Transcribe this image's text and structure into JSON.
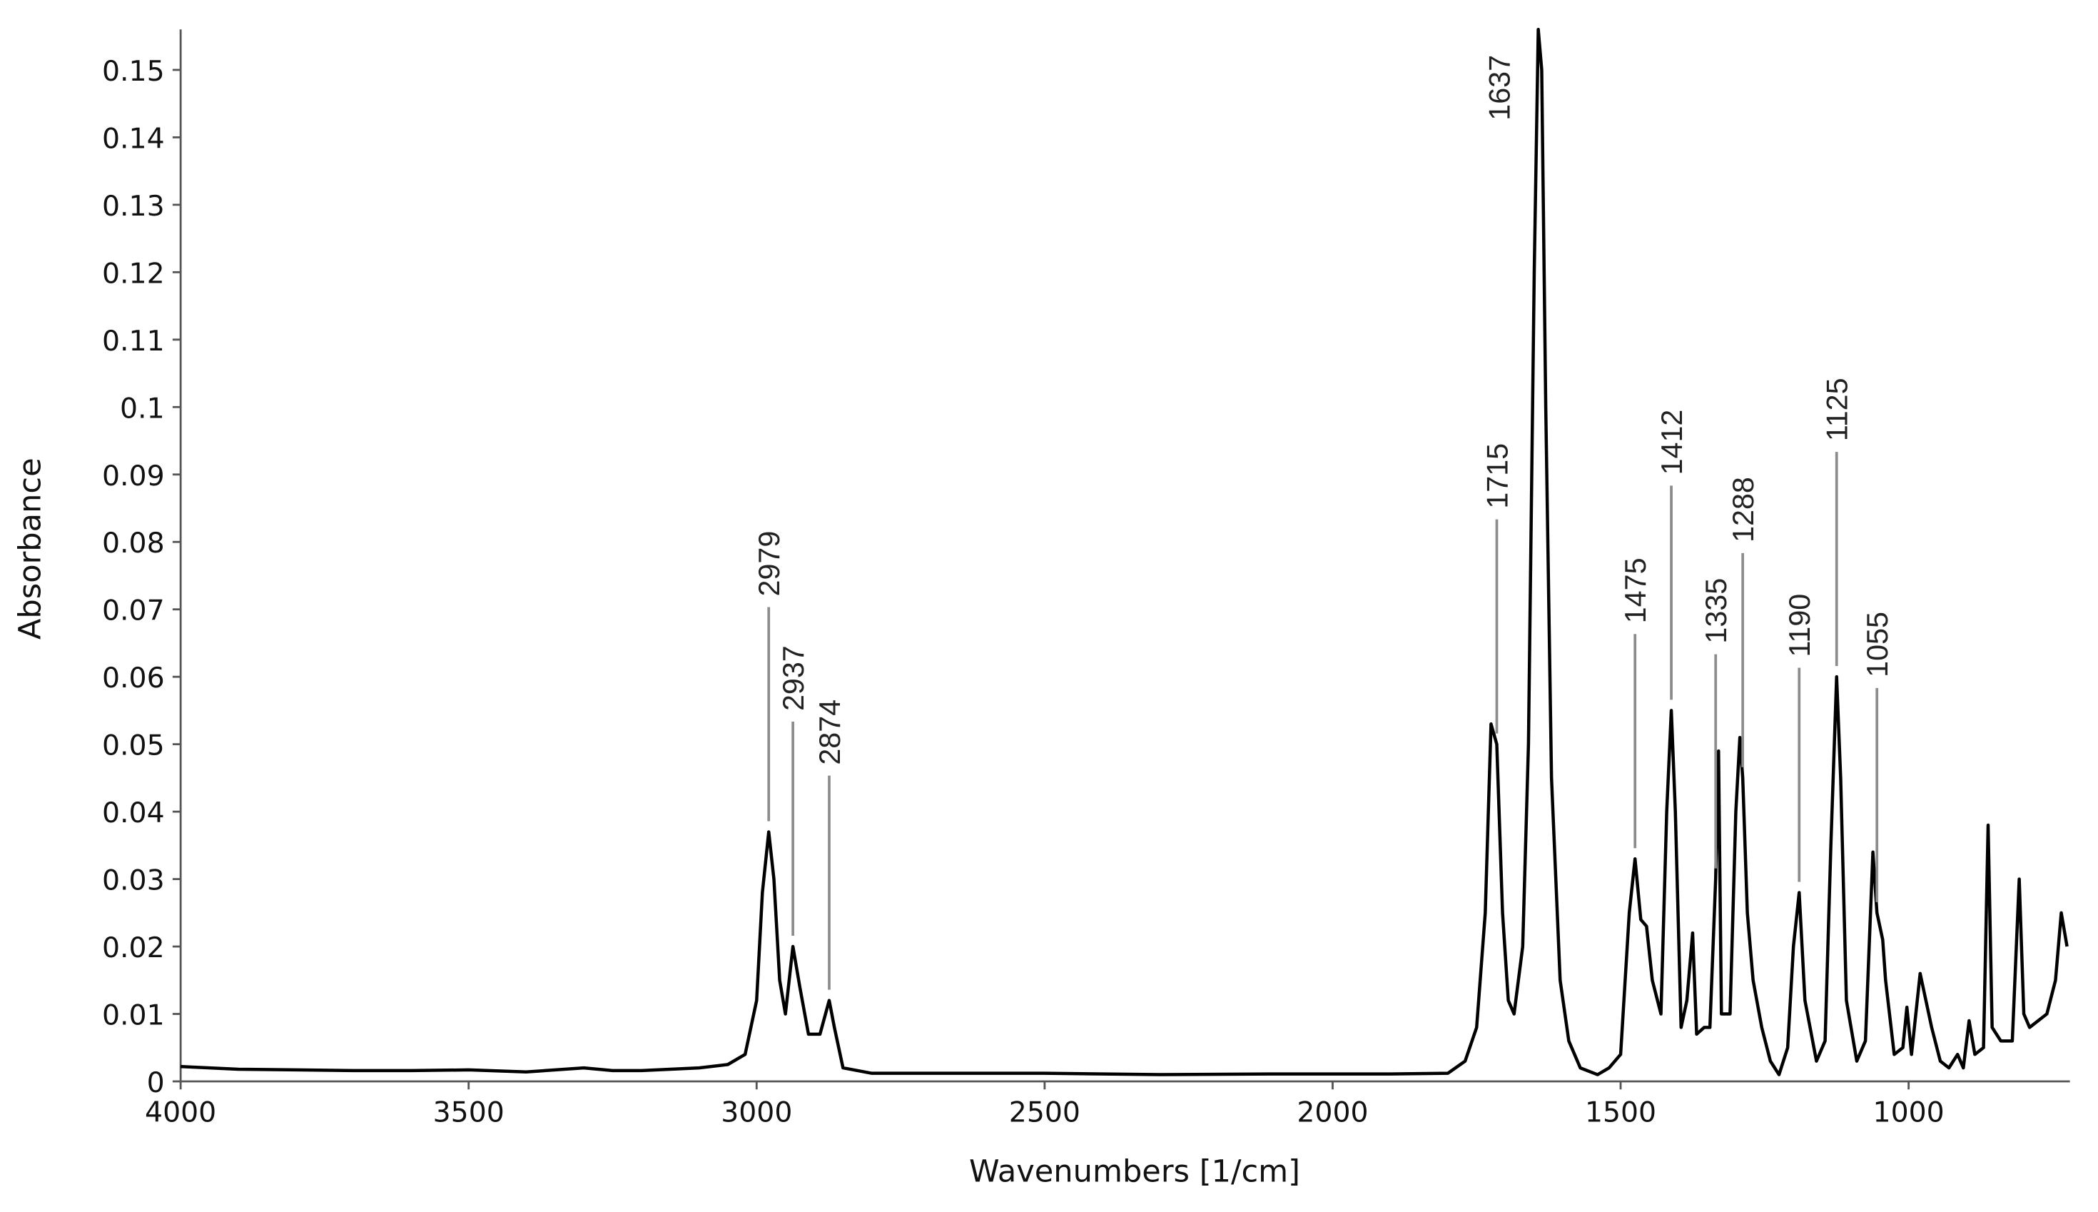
{
  "chart_data": {
    "type": "line",
    "xlabel": "Wavenumbers [1/cm]",
    "ylabel": "Absorbance",
    "color": "#000000",
    "annotation_color": "#8c8c8c",
    "x_reversed": true,
    "xlim": [
      4000,
      720
    ],
    "ylim": [
      0,
      0.156
    ],
    "xticks": [
      4000,
      3500,
      3000,
      2500,
      2000,
      1500,
      1000
    ],
    "yticks": [
      0,
      0.01,
      0.02,
      0.03,
      0.04,
      0.05,
      0.06,
      0.07,
      0.08,
      0.09,
      0.1,
      0.11,
      0.12,
      0.13,
      0.14,
      0.15
    ],
    "annotations": [
      2979,
      2937,
      2874,
      1715,
      1637,
      1475,
      1412,
      1335,
      1288,
      1190,
      1125,
      1055
    ],
    "x": [
      4000,
      3900,
      3800,
      3700,
      3600,
      3500,
      3400,
      3300,
      3250,
      3200,
      3100,
      3050,
      3020,
      3000,
      2990,
      2979,
      2970,
      2960,
      2950,
      2937,
      2925,
      2910,
      2890,
      2874,
      2865,
      2850,
      2800,
      2700,
      2500,
      2300,
      2100,
      1900,
      1800,
      1770,
      1750,
      1735,
      1725,
      1715,
      1705,
      1695,
      1685,
      1670,
      1660,
      1650,
      1643,
      1637,
      1630,
      1620,
      1605,
      1590,
      1570,
      1540,
      1520,
      1500,
      1485,
      1475,
      1465,
      1455,
      1445,
      1430,
      1420,
      1412,
      1405,
      1395,
      1385,
      1375,
      1368,
      1355,
      1345,
      1335,
      1330,
      1325,
      1310,
      1300,
      1293,
      1288,
      1280,
      1270,
      1255,
      1240,
      1225,
      1210,
      1200,
      1190,
      1180,
      1160,
      1145,
      1135,
      1125,
      1118,
      1108,
      1090,
      1075,
      1062,
      1055,
      1045,
      1040,
      1025,
      1010,
      1003,
      995,
      980,
      970,
      960,
      945,
      930,
      915,
      905,
      895,
      885,
      870,
      862,
      855,
      840,
      820,
      808,
      800,
      790,
      760,
      745,
      735,
      725
    ],
    "values": [
      0.0022,
      0.0018,
      0.0017,
      0.0016,
      0.0016,
      0.0017,
      0.0014,
      0.002,
      0.0016,
      0.0016,
      0.002,
      0.0025,
      0.004,
      0.012,
      0.028,
      0.037,
      0.03,
      0.015,
      0.01,
      0.02,
      0.014,
      0.007,
      0.007,
      0.012,
      0.008,
      0.002,
      0.0012,
      0.0012,
      0.0012,
      0.001,
      0.0011,
      0.0011,
      0.0012,
      0.003,
      0.008,
      0.025,
      0.053,
      0.05,
      0.025,
      0.012,
      0.01,
      0.02,
      0.05,
      0.12,
      0.156,
      0.15,
      0.1,
      0.045,
      0.015,
      0.006,
      0.002,
      0.001,
      0.002,
      0.004,
      0.025,
      0.033,
      0.024,
      0.023,
      0.015,
      0.01,
      0.04,
      0.055,
      0.04,
      0.008,
      0.012,
      0.022,
      0.007,
      0.008,
      0.008,
      0.03,
      0.049,
      0.01,
      0.01,
      0.04,
      0.051,
      0.045,
      0.025,
      0.015,
      0.008,
      0.003,
      0.001,
      0.005,
      0.02,
      0.028,
      0.012,
      0.003,
      0.006,
      0.035,
      0.06,
      0.045,
      0.012,
      0.003,
      0.006,
      0.034,
      0.025,
      0.021,
      0.015,
      0.004,
      0.005,
      0.011,
      0.004,
      0.016,
      0.012,
      0.008,
      0.003,
      0.002,
      0.004,
      0.002,
      0.009,
      0.004,
      0.005,
      0.038,
      0.008,
      0.006,
      0.006,
      0.03,
      0.01,
      0.008,
      0.01,
      0.015,
      0.025,
      0.02
    ]
  }
}
